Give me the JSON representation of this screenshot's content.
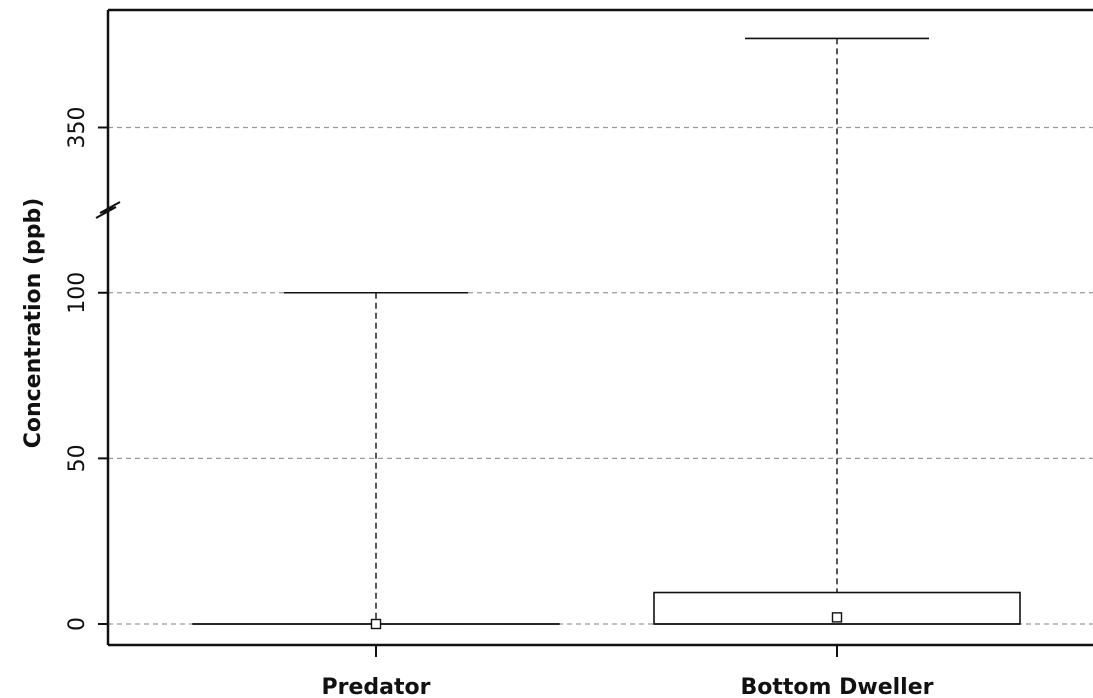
{
  "chart_data": {
    "type": "box",
    "title": "",
    "ylabel": "Concentration (ppb)",
    "xlabel": "",
    "y_axis": {
      "broken": true,
      "lower_segment_range": [
        0,
        125
      ],
      "upper_segment_range": [
        325,
        380
      ],
      "ticks": [
        0,
        50,
        100,
        350
      ],
      "tick_labels": [
        "0",
        "50",
        "100",
        "350"
      ]
    },
    "grid": "horizontal dashed",
    "categories": [
      "Predator",
      "Bottom Dweller"
    ],
    "boxes": [
      {
        "category": "Predator",
        "min": 0,
        "q1": 0,
        "median": 0,
        "mean": 0,
        "q3": 0,
        "max": 100
      },
      {
        "category": "Bottom Dweller",
        "min": 0,
        "q1": 0,
        "median": 0,
        "mean": 2,
        "q3": 9.5,
        "max": 377
      }
    ]
  }
}
